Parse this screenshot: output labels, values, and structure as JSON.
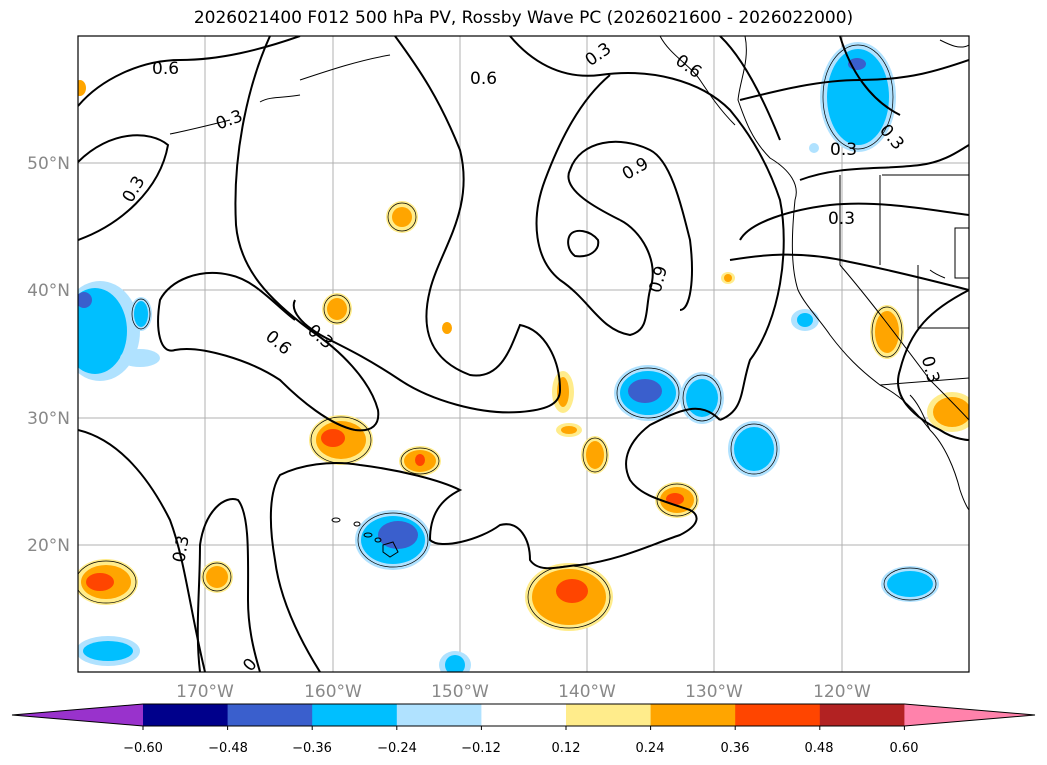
{
  "title": "2026021400 F012 500 hPa PV, Rossby Wave PC (2026021600 - 2026022000)",
  "map": {
    "lon_range": [
      -180,
      -110
    ],
    "lat_range": [
      10,
      60
    ],
    "lat_ticks": [
      {
        "value": 20,
        "label": "20°N"
      },
      {
        "value": 30,
        "label": "30°N"
      },
      {
        "value": 40,
        "label": "40°N"
      },
      {
        "value": 50,
        "label": "50°N"
      }
    ],
    "lon_ticks": [
      {
        "value": -170,
        "label": "170°W"
      },
      {
        "value": -160,
        "label": "160°W"
      },
      {
        "value": -150,
        "label": "150°W"
      },
      {
        "value": -140,
        "label": "140°W"
      },
      {
        "value": -130,
        "label": "130°W"
      },
      {
        "value": -120,
        "label": "120°W"
      }
    ],
    "pv_contour_labels": [
      "0.6",
      "0.6",
      "0.3",
      "0.3",
      "0.6",
      "0.3",
      "0.9",
      "0.9",
      "0.3",
      "0.3",
      "0.3",
      "0.3",
      "0",
      "0.3",
      "0.6",
      "0.3"
    ]
  },
  "colorbar": {
    "colors": [
      "#9932cc",
      "#00008b",
      "#3a5fcd",
      "#00bfff",
      "#b0e2ff",
      "#ffffff",
      "#ffec8b",
      "#ffa500",
      "#ff4500",
      "#b22222",
      "#ff82ab"
    ],
    "tick_labels": [
      "−0.60",
      "−0.48",
      "−0.36",
      "−0.24",
      "−0.12",
      "0.12",
      "0.24",
      "0.36",
      "0.48",
      "0.60"
    ]
  },
  "colors": {
    "gridline": "#b0b0b0",
    "contour": "#000000",
    "coast": "#000000",
    "axis_label": "#888888"
  }
}
